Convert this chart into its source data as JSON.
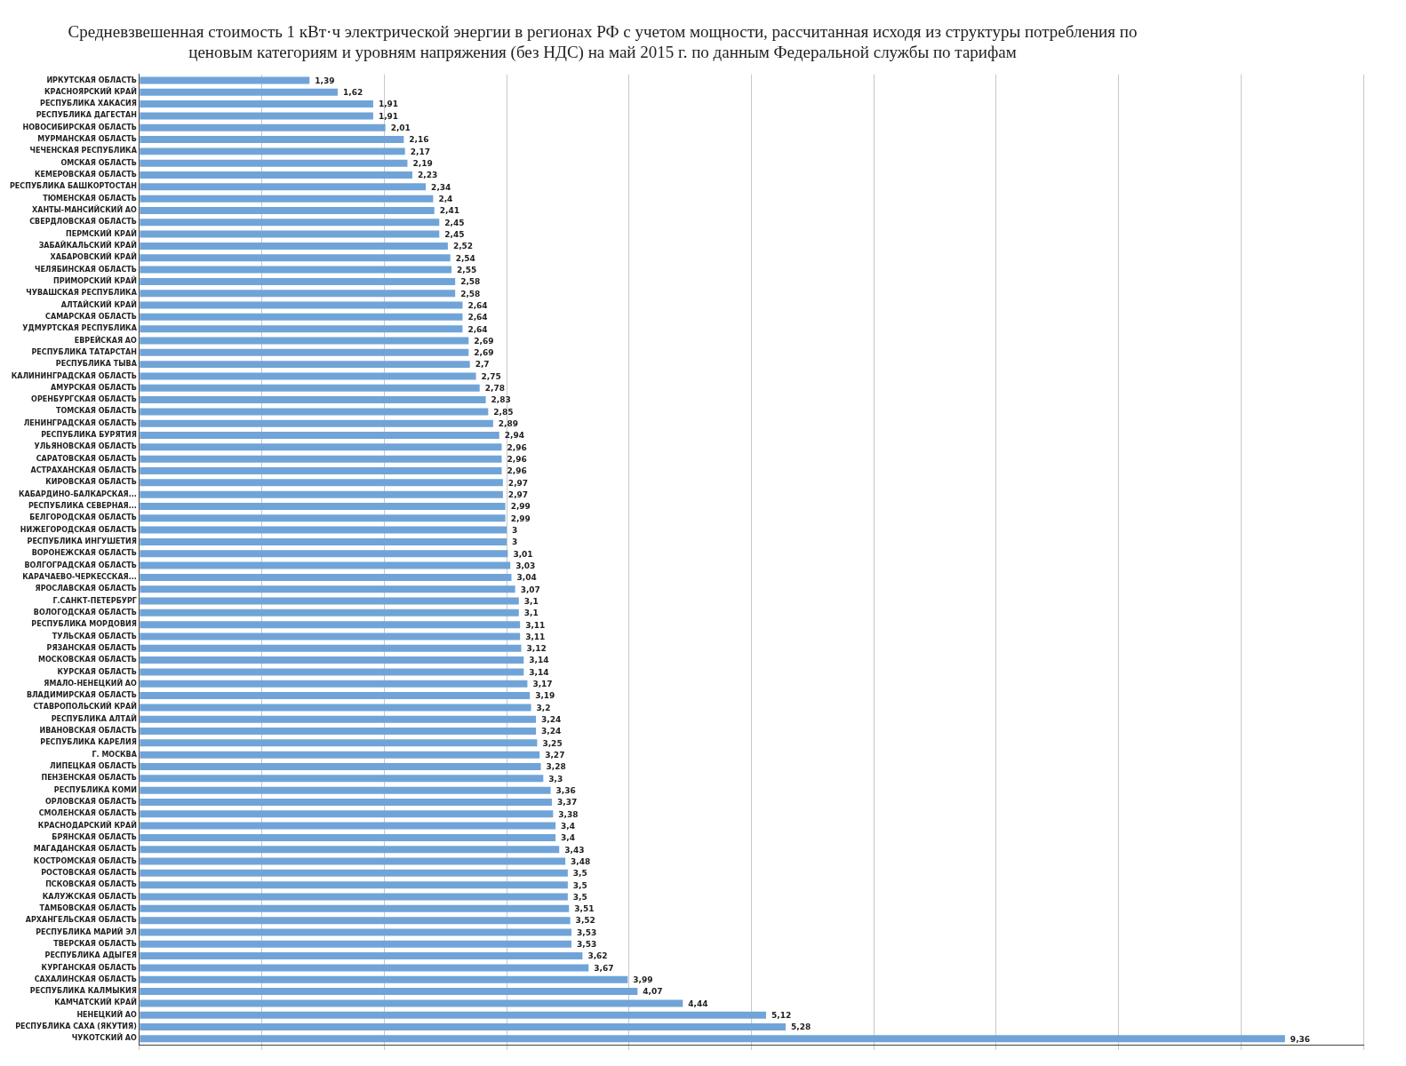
{
  "chart_data": {
    "type": "bar",
    "orientation": "horizontal",
    "title": "Средневзвешенная стоимость 1 кВт·ч электрической энергии в регионах РФ с учетом мощности, рассчитанная исходя из структуры потребления по ценовым категориям и уровням напряжения (без НДС) на май 2015 г. по данным Федеральной службы по тарифам",
    "categories": [
      "ИРКУТСКАЯ ОБЛАСТЬ",
      "КРАСНОЯРСКИЙ КРАЙ",
      "РЕСПУБЛИКА ХАКАСИЯ",
      "РЕСПУБЛИКА ДАГЕСТАН",
      "НОВОСИБИРСКАЯ ОБЛАСТЬ",
      "МУРМАНСКАЯ ОБЛАСТЬ",
      "ЧЕЧЕНСКАЯ РЕСПУБЛИКА",
      "ОМСКАЯ ОБЛАСТЬ",
      "КЕМЕРОВСКАЯ ОБЛАСТЬ",
      "РЕСПУБЛИКА БАШКОРТОСТАН",
      "ТЮМЕНСКАЯ ОБЛАСТЬ",
      "ХАНТЫ-МАНСИЙСКИЙ АО",
      "СВЕРДЛОВСКАЯ ОБЛАСТЬ",
      "ПЕРМСКИЙ КРАЙ",
      "ЗАБАЙКАЛЬСКИЙ КРАЙ",
      "ХАБАРОВСКИЙ КРАЙ",
      "ЧЕЛЯБИНСКАЯ ОБЛАСТЬ",
      "ПРИМОРСКИЙ КРАЙ",
      "ЧУВАШСКАЯ РЕСПУБЛИКА",
      "АЛТАЙСКИЙ КРАЙ",
      "САМАРСКАЯ ОБЛАСТЬ",
      "УДМУРТСКАЯ РЕСПУБЛИКА",
      "ЕВРЕЙСКАЯ АО",
      "РЕСПУБЛИКА ТАТАРСТАН",
      "РЕСПУБЛИКА ТЫВА",
      "КАЛИНИНГРАДСКАЯ ОБЛАСТЬ",
      "АМУРСКАЯ ОБЛАСТЬ",
      "ОРЕНБУРГСКАЯ ОБЛАСТЬ",
      "ТОМСКАЯ ОБЛАСТЬ",
      "ЛЕНИНГРАДСКАЯ ОБЛАСТЬ",
      "РЕСПУБЛИКА БУРЯТИЯ",
      "УЛЬЯНОВСКАЯ ОБЛАСТЬ",
      "САРАТОВСКАЯ ОБЛАСТЬ",
      "АСТРАХАНСКАЯ ОБЛАСТЬ",
      "КИРОВСКАЯ ОБЛАСТЬ",
      "КАБАРДИНО-БАЛКАРСКАЯ...",
      "РЕСПУБЛИКА СЕВЕРНАЯ...",
      "БЕЛГОРОДСКАЯ ОБЛАСТЬ",
      "НИЖЕГОРОДСКАЯ ОБЛАСТЬ",
      "РЕСПУБЛИКА ИНГУШЕТИЯ",
      "ВОРОНЕЖСКАЯ ОБЛАСТЬ",
      "ВОЛГОГРАДСКАЯ ОБЛАСТЬ",
      "КАРАЧАЕВО-ЧЕРКЕССКАЯ...",
      "ЯРОСЛАВСКАЯ ОБЛАСТЬ",
      "Г.САНКТ-ПЕТЕРБУРГ",
      "ВОЛОГОДСКАЯ ОБЛАСТЬ",
      "РЕСПУБЛИКА МОРДОВИЯ",
      "ТУЛЬСКАЯ ОБЛАСТЬ",
      "РЯЗАНСКАЯ ОБЛАСТЬ",
      "МОСКОВСКАЯ ОБЛАСТЬ",
      "КУРСКАЯ ОБЛАСТЬ",
      "ЯМАЛО-НЕНЕЦКИЙ АО",
      "ВЛАДИМИРСКАЯ ОБЛАСТЬ",
      "СТАВРОПОЛЬСКИЙ КРАЙ",
      "РЕСПУБЛИКА АЛТАЙ",
      "ИВАНОВСКАЯ ОБЛАСТЬ",
      "РЕСПУБЛИКА КАРЕЛИЯ",
      "Г. МОСКВА",
      "ЛИПЕЦКАЯ ОБЛАСТЬ",
      "ПЕНЗЕНСКАЯ ОБЛАСТЬ",
      "РЕСПУБЛИКА КОМИ",
      "ОРЛОВСКАЯ ОБЛАСТЬ",
      "СМОЛЕНСКАЯ ОБЛАСТЬ",
      "КРАСНОДАРСКИЙ КРАЙ",
      "БРЯНСКАЯ ОБЛАСТЬ",
      "МАГАДАНСКАЯ ОБЛАСТЬ",
      "КОСТРОМСКАЯ ОБЛАСТЬ",
      "РОСТОВСКАЯ ОБЛАСТЬ",
      "ПСКОВСКАЯ ОБЛАСТЬ",
      "КАЛУЖСКАЯ ОБЛАСТЬ",
      "ТАМБОВСКАЯ ОБЛАСТЬ",
      "АРХАНГЕЛЬСКАЯ ОБЛАСТЬ",
      "РЕСПУБЛИКА МАРИЙ ЭЛ",
      "ТВЕРСКАЯ ОБЛАСТЬ",
      "РЕСПУБЛИКА АДЫГЕЯ",
      "КУРГАНСКАЯ ОБЛАСТЬ",
      "САХАЛИНСКАЯ ОБЛАСТЬ",
      "РЕСПУБЛИКА КАЛМЫКИЯ",
      "КАМЧАТСКИЙ КРАЙ",
      "НЕНЕЦКИЙ АО",
      "РЕСПУБЛИКА САХА (ЯКУТИЯ)",
      "ЧУКОТСКИЙ АО"
    ],
    "values": [
      1.39,
      1.62,
      1.91,
      1.91,
      2.01,
      2.16,
      2.17,
      2.19,
      2.23,
      2.34,
      2.4,
      2.41,
      2.45,
      2.45,
      2.52,
      2.54,
      2.55,
      2.58,
      2.58,
      2.64,
      2.64,
      2.64,
      2.69,
      2.69,
      2.7,
      2.75,
      2.78,
      2.83,
      2.85,
      2.89,
      2.94,
      2.96,
      2.96,
      2.96,
      2.97,
      2.97,
      2.99,
      2.99,
      3,
      3,
      3.01,
      3.03,
      3.04,
      3.07,
      3.1,
      3.1,
      3.11,
      3.11,
      3.12,
      3.14,
      3.14,
      3.17,
      3.19,
      3.2,
      3.24,
      3.24,
      3.25,
      3.27,
      3.28,
      3.3,
      3.36,
      3.37,
      3.38,
      3.4,
      3.4,
      3.43,
      3.48,
      3.5,
      3.5,
      3.5,
      3.51,
      3.52,
      3.53,
      3.53,
      3.62,
      3.67,
      3.99,
      4.07,
      4.44,
      5.12,
      5.28,
      9.36
    ],
    "value_labels": [
      "1,39",
      "1,62",
      "1,91",
      "1,91",
      "2,01",
      "2,16",
      "2,17",
      "2,19",
      "2,23",
      "2,34",
      "2,4",
      "2,41",
      "2,45",
      "2,45",
      "2,52",
      "2,54",
      "2,55",
      "2,58",
      "2,58",
      "2,64",
      "2,64",
      "2,64",
      "2,69",
      "2,69",
      "2,7",
      "2,75",
      "2,78",
      "2,83",
      "2,85",
      "2,89",
      "2,94",
      "2,96",
      "2,96",
      "2,96",
      "2,97",
      "2,97",
      "2,99",
      "2,99",
      "3",
      "3",
      "3,01",
      "3,03",
      "3,04",
      "3,07",
      "3,1",
      "3,1",
      "3,11",
      "3,11",
      "3,12",
      "3,14",
      "3,14",
      "3,17",
      "3,19",
      "3,2",
      "3,24",
      "3,24",
      "3,25",
      "3,27",
      "3,28",
      "3,3",
      "3,36",
      "3,37",
      "3,38",
      "3,4",
      "3,4",
      "3,43",
      "3,48",
      "3,5",
      "3,5",
      "3,5",
      "3,51",
      "3,52",
      "3,53",
      "3,53",
      "3,62",
      "3,67",
      "3,99",
      "4,07",
      "4,44",
      "5,12",
      "5,28",
      "9,36"
    ],
    "color": "#70a4d8",
    "grid": "x",
    "tick_labels": "y",
    "xlim": [
      0,
      10
    ],
    "xticks": [
      {
        "value": 0,
        "label": null
      },
      {
        "value": 1,
        "label": null
      },
      {
        "value": 2,
        "label": null
      },
      {
        "value": 3,
        "label": null
      },
      {
        "value": 4,
        "label": null
      },
      {
        "value": 5,
        "label": null
      },
      {
        "value": 6,
        "label": null
      },
      {
        "value": 7,
        "label": null
      },
      {
        "value": 8,
        "label": null
      },
      {
        "value": 9,
        "label": null
      },
      {
        "value": 10,
        "label": null
      }
    ]
  }
}
